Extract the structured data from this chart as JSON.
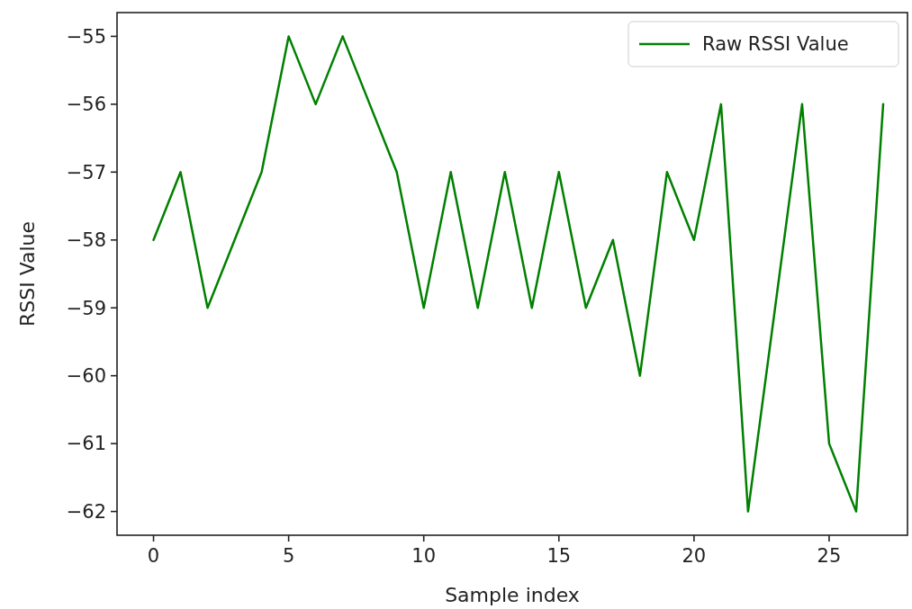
{
  "chart_data": {
    "type": "line",
    "xlabel": "Sample index",
    "ylabel": "RSSI Value",
    "x": [
      0,
      1,
      2,
      3,
      4,
      5,
      6,
      7,
      8,
      9,
      10,
      11,
      12,
      13,
      14,
      15,
      16,
      17,
      18,
      19,
      20,
      21,
      22,
      23,
      24,
      25,
      26,
      27
    ],
    "series": [
      {
        "name": "Raw RSSI Value",
        "color": "#008000",
        "values": [
          -58,
          -57,
          -59,
          -58,
          -57,
          -55,
          -56,
          -55,
          -56,
          -57,
          -59,
          -57,
          -59,
          -57,
          -59,
          -57,
          -59,
          -58,
          -60,
          -57,
          -58,
          -56,
          -62,
          -59,
          -56,
          -61,
          -62,
          -56
        ]
      }
    ],
    "xlim": [
      -1.35,
      27.9
    ],
    "xticks": [
      0,
      5,
      10,
      15,
      20,
      25
    ],
    "ylim": [
      -62.35,
      -54.65
    ],
    "yticks": [
      -62,
      -61,
      -60,
      -59,
      -58,
      -57,
      -56,
      -55
    ],
    "legend": "top right",
    "grid": false,
    "marker": "none",
    "line_style": "solid"
  }
}
